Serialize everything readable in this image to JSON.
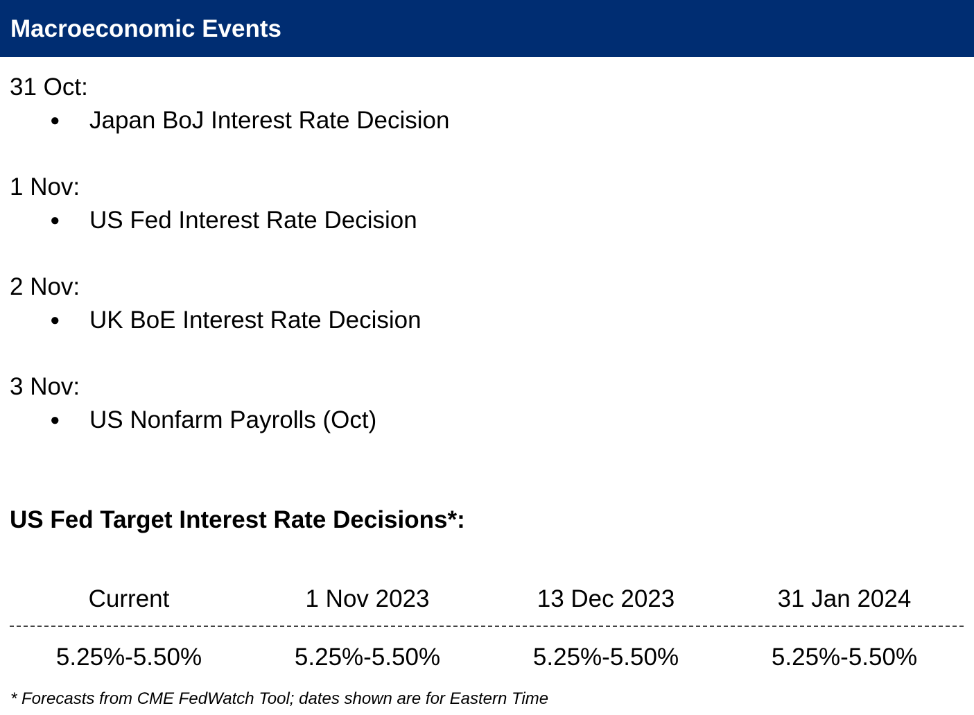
{
  "header": {
    "title": "Macroeconomic Events",
    "background_color": "#002d72"
  },
  "events": [
    {
      "date": "31 Oct:",
      "bullet": "●",
      "item": "Japan BoJ Interest Rate Decision"
    },
    {
      "date": "1 Nov:",
      "bullet": "●",
      "item": "US Fed Interest Rate Decision"
    },
    {
      "date": "2 Nov:",
      "bullet": "●",
      "item": "UK BoE Interest Rate Decision"
    },
    {
      "date": "3 Nov:",
      "bullet": "●",
      "item": "US Nonfarm Payrolls (Oct)"
    }
  ],
  "fed_section": {
    "title": "US Fed Target Interest Rate Decisions*:",
    "headers": [
      "Current",
      "1 Nov 2023",
      "13 Dec 2023",
      "31 Jan 2024"
    ],
    "values": [
      "5.25%-5.50%",
      "5.25%-5.50%",
      "5.25%-5.50%",
      "5.25%-5.50%"
    ]
  },
  "footnote": "* Forecasts from CME FedWatch Tool; dates shown are for Eastern Time"
}
